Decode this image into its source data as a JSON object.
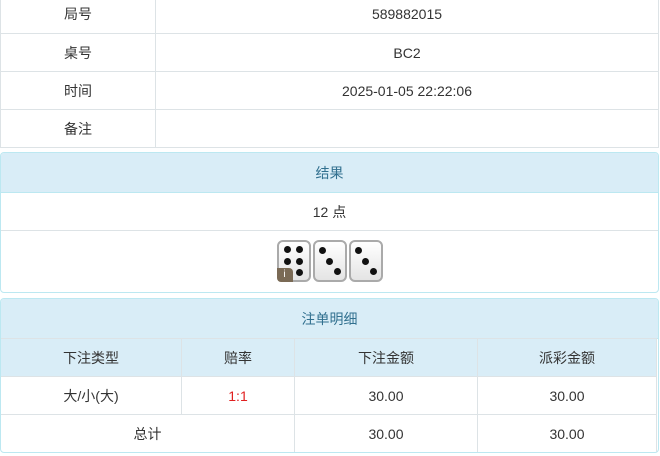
{
  "info": [
    {
      "label": "局号",
      "value": "589882015"
    },
    {
      "label": "桌号",
      "value": "BC2"
    },
    {
      "label": "时间",
      "value": "2025-01-05 22:22:06"
    },
    {
      "label": "备注",
      "value": ""
    }
  ],
  "result": {
    "title": "结果",
    "points": "12 点",
    "dice": [
      6,
      3,
      3
    ],
    "info_badge": "i"
  },
  "bets": {
    "title": "注单明细",
    "headers": [
      "下注类型",
      "赔率",
      "下注金额",
      "派彩金额"
    ],
    "rows": [
      {
        "type": "大/小(大)",
        "odds": "1:1",
        "amount": "30.00",
        "payout": "30.00"
      }
    ],
    "total": {
      "label": "总计",
      "amount": "30.00",
      "payout": "30.00"
    },
    "odds_color": "#e02020"
  }
}
